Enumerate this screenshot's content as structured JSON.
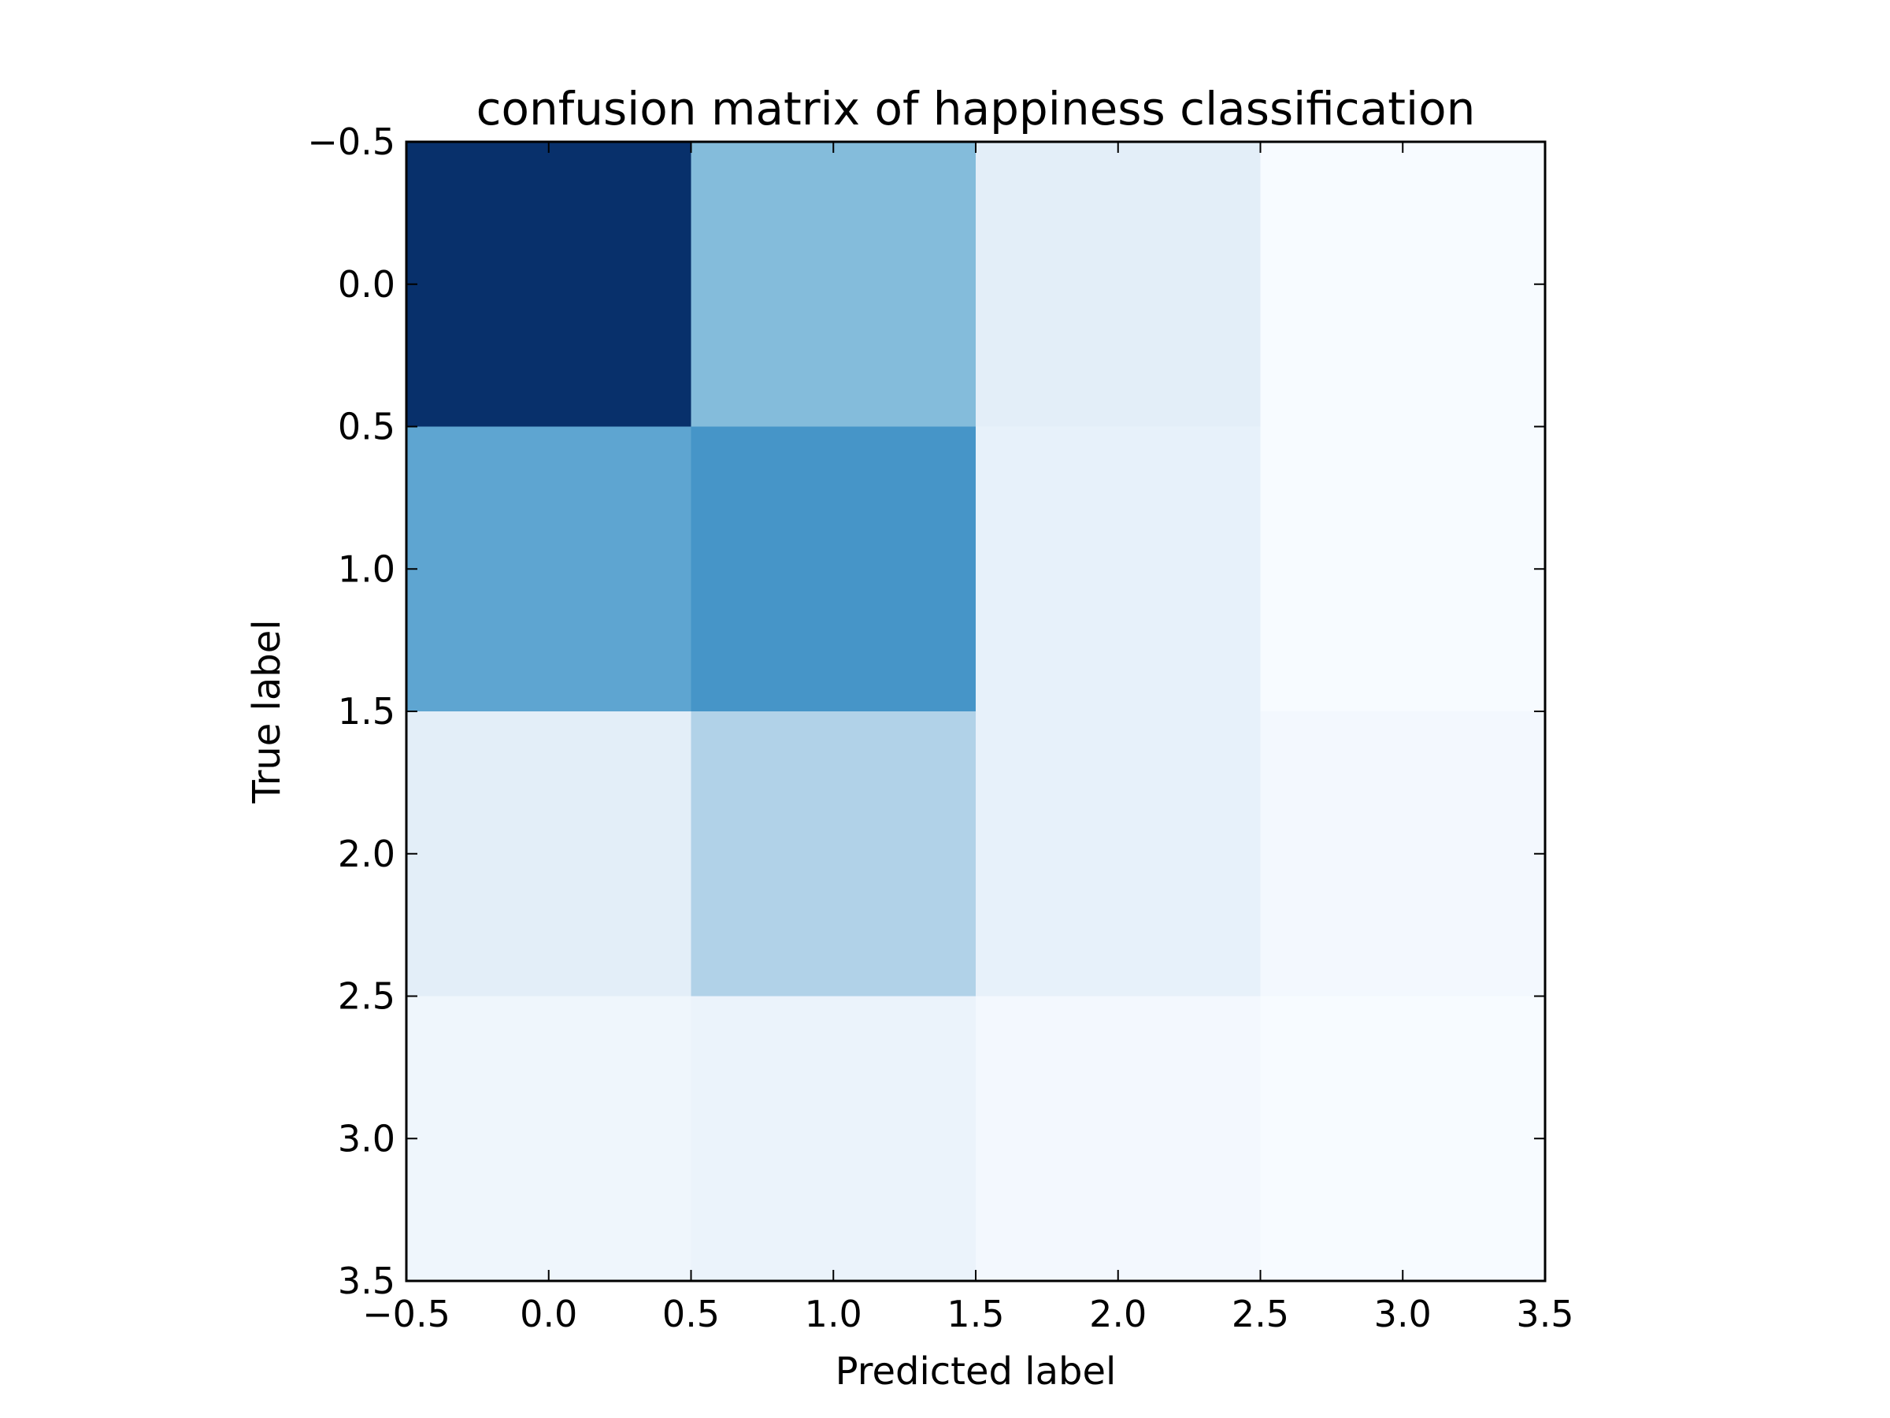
{
  "chart_data": {
    "type": "heatmap",
    "title": "confusion matrix of happiness classification",
    "xlabel": "Predicted label",
    "ylabel": "True label",
    "xlim": [
      -0.5,
      3.5
    ],
    "ylim": [
      3.5,
      -0.5
    ],
    "xticks": [
      -0.5,
      0.0,
      0.5,
      1.0,
      1.5,
      2.0,
      2.5,
      3.0,
      3.5
    ],
    "yticks": [
      -0.5,
      0.0,
      0.5,
      1.0,
      1.5,
      2.0,
      2.5,
      3.0,
      3.5
    ],
    "xtick_labels": [
      "−0.5",
      "0.0",
      "0.5",
      "1.0",
      "1.5",
      "2.0",
      "2.5",
      "3.0",
      "3.5"
    ],
    "ytick_labels": [
      "−0.5",
      "0.0",
      "0.5",
      "1.0",
      "1.5",
      "2.0",
      "2.5",
      "3.0",
      "3.5"
    ],
    "rows": [
      0,
      1,
      2,
      3
    ],
    "columns": [
      0,
      1,
      2,
      3
    ],
    "values": [
      [
        1.0,
        0.45,
        0.12,
        0.02
      ],
      [
        0.55,
        0.62,
        0.1,
        0.02
      ],
      [
        0.12,
        0.33,
        0.1,
        0.04
      ],
      [
        0.06,
        0.08,
        0.04,
        0.02
      ]
    ],
    "colormap": "Blues",
    "colors": [
      "#f7fbff",
      "#deebf7",
      "#c6dbef",
      "#9ecae1",
      "#6baed6",
      "#4292c6",
      "#2171b5",
      "#08519c",
      "#08306b"
    ],
    "grid": false,
    "legend": "none"
  }
}
